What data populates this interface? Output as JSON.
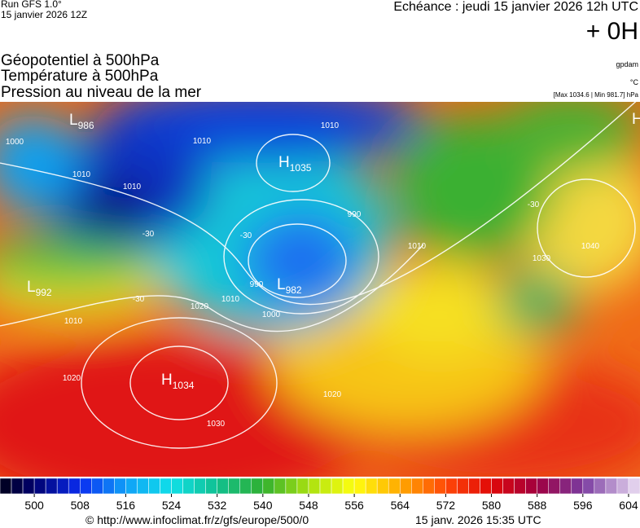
{
  "header": {
    "run": "Run GFS 1.0°",
    "run_date": "15 janvier 2026 12Z",
    "valid": "Echéance : jeudi 15 janvier 2026 12h UTC",
    "lead": "+ 0H",
    "fields": [
      "Géopotentiel à 500hPa",
      "Température à 500hPa",
      "Pression au niveau de la mer"
    ],
    "units": [
      "gpdam",
      "°C",
      "[Max 1034.6 | Min 981.7] hPa"
    ]
  },
  "map": {
    "centers": [
      {
        "letter": "H",
        "value": "1035"
      },
      {
        "letter": "L",
        "value": "986"
      },
      {
        "letter": "L",
        "value": "982"
      },
      {
        "letter": "L",
        "value": "992"
      },
      {
        "letter": "H",
        "value": "1034"
      },
      {
        "letter": "H",
        "value": null
      }
    ],
    "contour_labels": [
      "1010",
      "1010",
      "1010",
      "1010",
      "1000",
      "990",
      "990",
      "1000",
      "1010",
      "1020",
      "1010",
      "1020",
      "1030",
      "1020",
      "1010",
      "1040",
      "1030",
      "-30",
      "-30",
      "-30",
      "-30"
    ]
  },
  "colorbar": {
    "range": [
      494,
      606
    ],
    "step": 2,
    "ticks": [
      500,
      508,
      516,
      524,
      532,
      540,
      548,
      556,
      564,
      572,
      580,
      588,
      596,
      604
    ],
    "color_stops": [
      [
        494,
        "#000018"
      ],
      [
        500,
        "#00006e"
      ],
      [
        508,
        "#0a2cf0"
      ],
      [
        516,
        "#10a0f8"
      ],
      [
        524,
        "#10e0e8"
      ],
      [
        532,
        "#10c090"
      ],
      [
        540,
        "#30b030"
      ],
      [
        548,
        "#a8e010"
      ],
      [
        556,
        "#ffff10"
      ],
      [
        564,
        "#ffa800"
      ],
      [
        572,
        "#ff4808"
      ],
      [
        580,
        "#e00808"
      ],
      [
        588,
        "#a00040"
      ],
      [
        596,
        "#7a3aa0"
      ],
      [
        606,
        "#ece0f4"
      ]
    ]
  },
  "footer": {
    "url": "© http://www.infoclimat.fr/z/gfs/europe/500/0",
    "generated": "15 janv. 2026 15:35 UTC"
  }
}
